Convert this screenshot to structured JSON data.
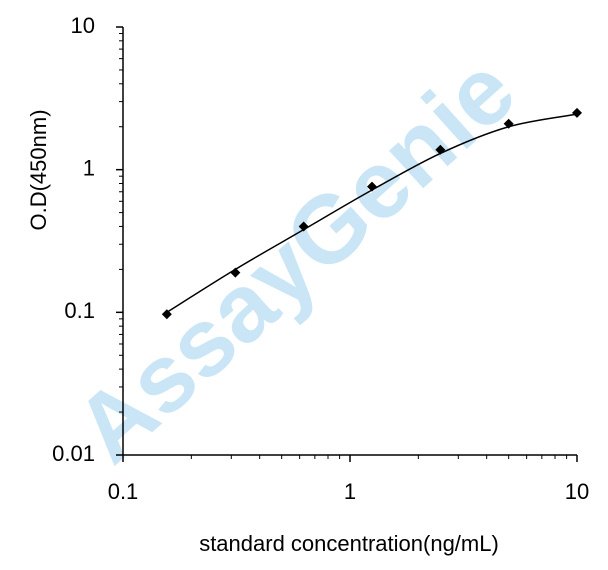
{
  "chart_data": {
    "type": "scatter",
    "xlabel": "standard concentration(ng/mL)",
    "ylabel": "O.D(450nm)",
    "watermark": "AssayGenie",
    "log_x": true,
    "log_y": true,
    "xlim": [
      0.1,
      10
    ],
    "ylim": [
      0.01,
      10
    ],
    "xticks": [
      0.1,
      1,
      10
    ],
    "yticks": [
      0.01,
      0.1,
      1,
      10
    ],
    "series": [
      {
        "kind": "points",
        "color": "#000000",
        "x": [
          0.156,
          0.3125,
          0.625,
          1.25,
          2.5,
          5,
          10
        ],
        "values": [
          0.097,
          0.19,
          0.4,
          0.76,
          1.38,
          2.1,
          2.5
        ]
      },
      {
        "kind": "curve",
        "color": "#000000",
        "x": [
          0.156,
          0.3125,
          0.625,
          1.25,
          2.5,
          5,
          10
        ],
        "values": [
          0.1,
          0.2,
          0.38,
          0.72,
          1.3,
          2.0,
          2.45
        ]
      }
    ]
  }
}
